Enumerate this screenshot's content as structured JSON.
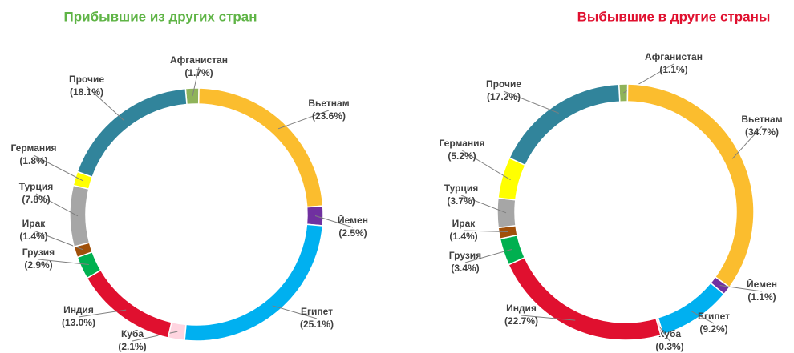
{
  "chart_data": [
    {
      "type": "pie",
      "title": "Прибывшие из других стран",
      "title_color": "#5fb446",
      "donut": true,
      "categories": [
        "Афганистан",
        "Вьетнам",
        "Йемен",
        "Египет",
        "Куба",
        "Индия",
        "Грузия",
        "Ирак",
        "Турция",
        "Германия",
        "Прочие"
      ],
      "values": [
        1.7,
        23.6,
        2.5,
        25.1,
        2.1,
        13.0,
        2.9,
        1.4,
        7.8,
        1.8,
        18.1
      ],
      "value_labels": [
        "(1.7%)",
        "(23.6%)",
        "(2.5%)",
        "(25.1%)",
        "(2.1%)",
        "(13.0%)",
        "(2.9%)",
        "(1.4%)",
        "(7.8%)",
        "(1.8%)",
        "(18.1%)"
      ],
      "colors": [
        "#8fb35a",
        "#fbbd2e",
        "#7030a0",
        "#00b0f0",
        "#ffd5e0",
        "#e0102f",
        "#00b050",
        "#a0500a",
        "#a6a6a6",
        "#ffff00",
        "#31849b"
      ]
    },
    {
      "type": "pie",
      "title": "Выбывшие в другие страны",
      "title_color": "#e0102f",
      "donut": true,
      "categories": [
        "Афганистан",
        "Вьетнам",
        "Йемен",
        "Египет",
        "Куба",
        "Индия",
        "Грузия",
        "Ирак",
        "Турция",
        "Германия",
        "Прочие"
      ],
      "values": [
        1.1,
        34.7,
        1.1,
        9.2,
        0.3,
        22.7,
        3.4,
        1.4,
        3.7,
        5.2,
        17.2
      ],
      "value_labels": [
        "(1.1%)",
        "(34.7%)",
        "(1.1%)",
        "(9.2%)",
        "(0.3%)",
        "(22.7%)",
        "(3.4%)",
        "(1.4%)",
        "(3.7%)",
        "(5.2%)",
        "(17.2%)"
      ],
      "colors": [
        "#8fb35a",
        "#fbbd2e",
        "#7030a0",
        "#00b0f0",
        "#ffd5e0",
        "#e0102f",
        "#00b050",
        "#a0500a",
        "#a6a6a6",
        "#ffff00",
        "#31849b"
      ]
    }
  ]
}
